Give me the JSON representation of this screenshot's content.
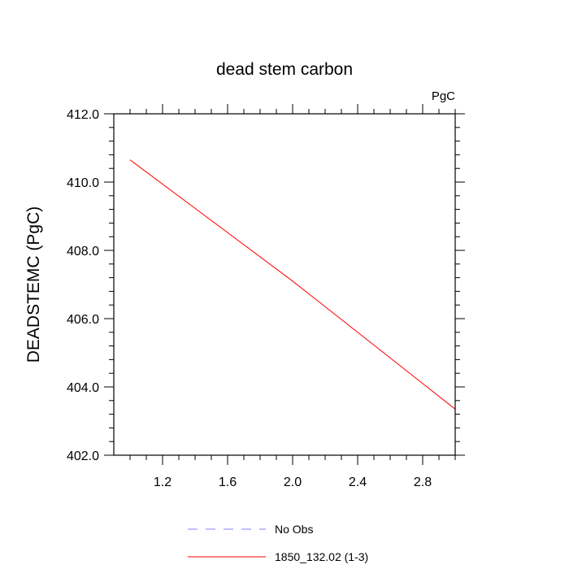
{
  "chart_data": {
    "type": "line",
    "title": "dead stem carbon",
    "units_label": "PgC",
    "xlabel": "",
    "ylabel": "DEADSTEMC  (PgC)",
    "xlim": [
      0.9,
      3.0
    ],
    "ylim": [
      402.0,
      412.0
    ],
    "x_ticks": [
      1.2,
      1.6,
      2.0,
      2.4,
      2.8
    ],
    "x_tick_labels": [
      "1.2",
      "1.6",
      "2.0",
      "2.4",
      "2.8"
    ],
    "y_ticks": [
      402.0,
      404.0,
      406.0,
      408.0,
      410.0,
      412.0
    ],
    "y_tick_labels": [
      "402.0",
      "404.0",
      "406.0",
      "408.0",
      "410.0",
      "412.0"
    ],
    "grid": false,
    "legend_position": "bottom-center",
    "series": [
      {
        "name": "No Obs",
        "color": "#8080ff",
        "dash": "dashed",
        "x": [],
        "y": []
      },
      {
        "name": "1850_132.02 (1-3)",
        "color": "#ff0000",
        "dash": "solid",
        "x": [
          1.0,
          2.0,
          3.0
        ],
        "y": [
          410.65,
          407.1,
          403.35
        ]
      }
    ]
  }
}
